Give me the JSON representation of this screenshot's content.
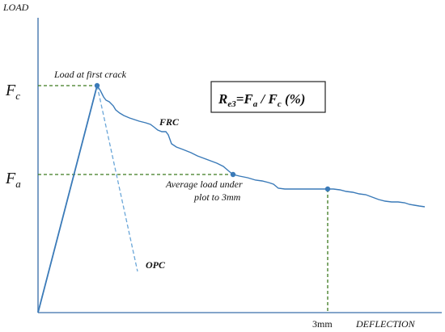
{
  "axes": {
    "y_label": "LOAD",
    "x_label": "DEFLECTION"
  },
  "labels": {
    "fc_main": "F",
    "fc_sub": "c",
    "fa_main": "F",
    "fa_sub": "a",
    "first_crack": "Load at first crack",
    "frc": "FRC",
    "opc": "OPC",
    "avg_line1": "Average load under",
    "avg_line2": "plot to 3mm",
    "tick_3mm": "3mm"
  },
  "formula": {
    "r": "R",
    "r_sub": "e3",
    "eq_f": "=F",
    "a_sub": "a",
    "slash_f": " / F",
    "c_sub": "c",
    "percent": " (%)"
  },
  "colors": {
    "curve": "#3a7ab8",
    "opc_dash": "#6aa6d8",
    "guide_dash": "#3c7a1e",
    "axis": "#5b87b8"
  }
}
